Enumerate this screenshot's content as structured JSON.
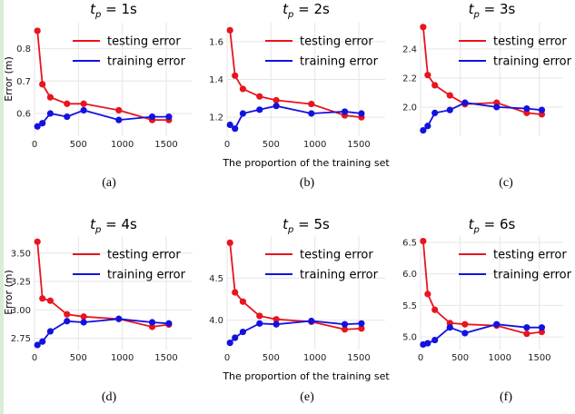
{
  "figure": {
    "xlabel": "The proportion of the training set",
    "ylabel": "Error (m)"
  },
  "legend": {
    "testing": "testing error",
    "training": "training error"
  },
  "colors": {
    "testing": "#e8141e",
    "training": "#1212e0",
    "grid": "#e6e6e6"
  },
  "chart_data": [
    {
      "type": "line",
      "title_base": "t",
      "title_sub": "p",
      "title_value": " = 1s",
      "caption": "(a)",
      "x_ticks": [
        "0",
        "500",
        "1000",
        "1500"
      ],
      "y_ticks": [
        "0.6",
        "0.7",
        "0.8"
      ],
      "y_tick_values": [
        0.6,
        0.7,
        0.8
      ],
      "xlim": [
        0,
        1800
      ],
      "ylim": [
        0.53,
        0.88
      ],
      "x": [
        33,
        90,
        180,
        370,
        560,
        960,
        1340,
        1530
      ],
      "series": [
        {
          "name": "testing error",
          "key": "testing",
          "values": [
            0.855,
            0.69,
            0.65,
            0.63,
            0.63,
            0.61,
            0.58,
            0.58
          ]
        },
        {
          "name": "training error",
          "key": "training",
          "values": [
            0.56,
            0.57,
            0.6,
            0.59,
            0.61,
            0.58,
            0.59,
            0.59
          ]
        }
      ]
    },
    {
      "type": "line",
      "title_base": "t",
      "title_sub": "p",
      "title_value": " = 2s",
      "caption": "(b)",
      "x_ticks": [
        "0",
        "500",
        "1000",
        "1500"
      ],
      "y_ticks": [
        "1.2",
        "1.4",
        "1.6"
      ],
      "y_tick_values": [
        1.2,
        1.4,
        1.6
      ],
      "xlim": [
        0,
        1800
      ],
      "ylim": [
        1.1,
        1.7
      ],
      "x": [
        33,
        90,
        180,
        370,
        560,
        960,
        1340,
        1530
      ],
      "series": [
        {
          "name": "testing error",
          "key": "testing",
          "values": [
            1.66,
            1.42,
            1.35,
            1.31,
            1.29,
            1.27,
            1.21,
            1.2
          ]
        },
        {
          "name": "training error",
          "key": "training",
          "values": [
            1.16,
            1.14,
            1.22,
            1.24,
            1.26,
            1.22,
            1.23,
            1.22
          ]
        }
      ]
    },
    {
      "type": "line",
      "title_base": "t",
      "title_sub": "p",
      "title_value": " = 3s",
      "caption": "(c)",
      "x_ticks": [],
      "y_ticks": [
        "2.0",
        "2.2",
        "2.4"
      ],
      "y_tick_values": [
        2.0,
        2.2,
        2.4
      ],
      "xlim": [
        0,
        1800
      ],
      "ylim": [
        1.8,
        2.58
      ],
      "x": [
        33,
        90,
        180,
        370,
        560,
        960,
        1340,
        1530
      ],
      "series": [
        {
          "name": "testing error",
          "key": "testing",
          "values": [
            2.55,
            2.22,
            2.15,
            2.08,
            2.02,
            2.03,
            1.96,
            1.95
          ]
        },
        {
          "name": "training error",
          "key": "training",
          "values": [
            1.84,
            1.87,
            1.96,
            1.98,
            2.03,
            2.0,
            1.99,
            1.98
          ]
        }
      ]
    },
    {
      "type": "line",
      "title_base": "t",
      "title_sub": "p",
      "title_value": " = 4s",
      "caption": "(d)",
      "x_ticks": [
        "0",
        "500",
        "1000",
        "1500"
      ],
      "y_ticks": [
        "2.75",
        "3.00",
        "3.25",
        "3.50"
      ],
      "y_tick_values": [
        2.75,
        3.0,
        3.25,
        3.5
      ],
      "xlim": [
        0,
        1800
      ],
      "ylim": [
        2.65,
        3.65
      ],
      "x": [
        33,
        90,
        180,
        370,
        560,
        960,
        1340,
        1530
      ],
      "series": [
        {
          "name": "testing error",
          "key": "testing",
          "values": [
            3.6,
            3.1,
            3.08,
            2.96,
            2.94,
            2.92,
            2.85,
            2.87
          ]
        },
        {
          "name": "training error",
          "key": "training",
          "values": [
            2.69,
            2.72,
            2.81,
            2.9,
            2.89,
            2.92,
            2.89,
            2.88
          ]
        }
      ]
    },
    {
      "type": "line",
      "title_base": "t",
      "title_sub": "p",
      "title_value": " = 5s",
      "caption": "(e)",
      "x_ticks": [
        "0",
        "500",
        "1000",
        "1500"
      ],
      "y_ticks": [
        "4.0",
        "4.5"
      ],
      "y_tick_values": [
        4.0,
        4.5
      ],
      "xlim": [
        0,
        1800
      ],
      "ylim": [
        3.65,
        5.0
      ],
      "x": [
        33,
        90,
        180,
        370,
        560,
        960,
        1340,
        1530
      ],
      "series": [
        {
          "name": "testing error",
          "key": "testing",
          "values": [
            4.92,
            4.33,
            4.22,
            4.05,
            4.01,
            3.98,
            3.89,
            3.9
          ]
        },
        {
          "name": "training error",
          "key": "training",
          "values": [
            3.73,
            3.79,
            3.86,
            3.96,
            3.95,
            3.99,
            3.95,
            3.96
          ]
        }
      ]
    },
    {
      "type": "line",
      "title_base": "t",
      "title_sub": "p",
      "title_value": " = 6s",
      "caption": "(f)",
      "x_ticks": [
        "0",
        "500",
        "1000",
        "1500"
      ],
      "y_ticks": [
        "5.0",
        "5.5",
        "6.0",
        "6.5"
      ],
      "y_tick_values": [
        5.0,
        5.5,
        6.0,
        6.5
      ],
      "xlim": [
        0,
        1800
      ],
      "ylim": [
        4.8,
        6.6
      ],
      "x": [
        33,
        90,
        180,
        370,
        560,
        960,
        1340,
        1530
      ],
      "series": [
        {
          "name": "testing error",
          "key": "testing",
          "values": [
            6.52,
            5.68,
            5.43,
            5.22,
            5.2,
            5.18,
            5.05,
            5.08
          ]
        },
        {
          "name": "training error",
          "key": "training",
          "values": [
            4.88,
            4.9,
            4.95,
            5.15,
            5.06,
            5.2,
            5.15,
            5.15
          ]
        }
      ]
    }
  ]
}
